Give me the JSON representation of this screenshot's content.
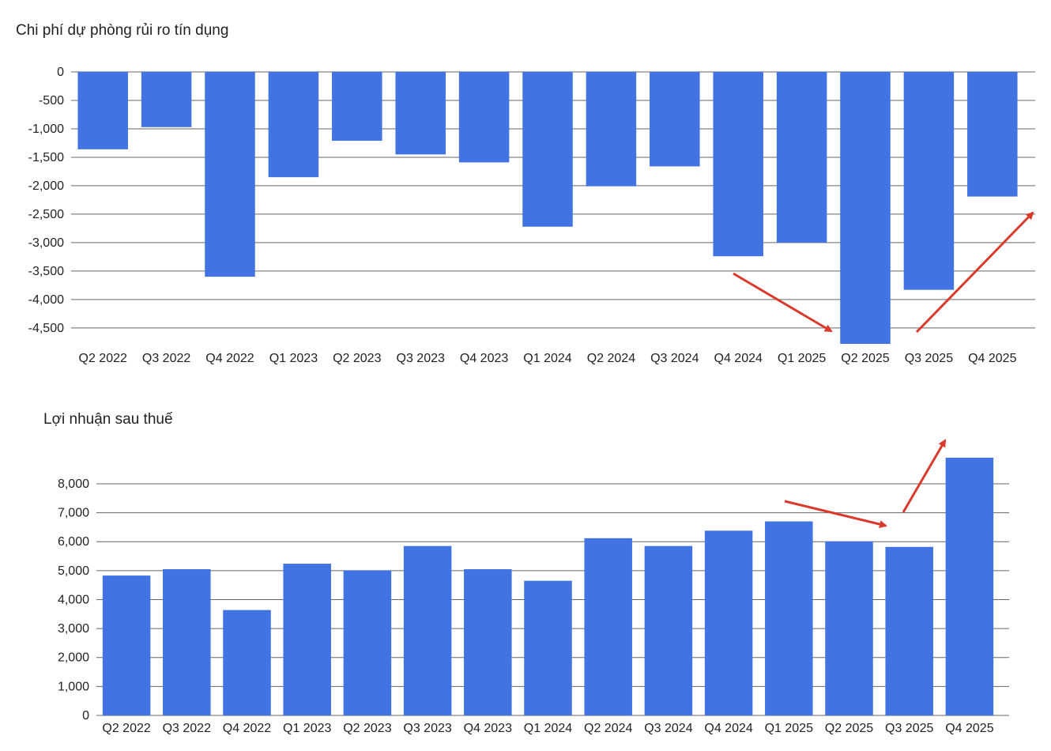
{
  "colors": {
    "bar": "#4174E2",
    "grid": "#666666",
    "arrow": "#D93A2B",
    "background": "#ffffff"
  },
  "chart_data": [
    {
      "type": "bar",
      "title": "Chi phí dự phòng rủi ro tín dụng",
      "xlabel": "",
      "ylabel": "",
      "categories": [
        "Q2 2022",
        "Q3 2022",
        "Q4 2022",
        "Q1 2023",
        "Q2 2023",
        "Q3 2023",
        "Q4 2023",
        "Q1 2024",
        "Q2 2024",
        "Q3 2024",
        "Q4 2024",
        "Q1 2025",
        "Q2 2025",
        "Q3 2025",
        "Q4 2025"
      ],
      "values": [
        -1360,
        -970,
        -3600,
        -1850,
        -1210,
        -1450,
        -1590,
        -2720,
        -2010,
        -1660,
        -3240,
        -3000,
        -4780,
        -3830,
        -2190
      ],
      "ylim": [
        -4780,
        0
      ],
      "yticks": [
        0,
        -500,
        -1000,
        -1500,
        -2000,
        -2500,
        -3000,
        -3500,
        -4000,
        -4500
      ],
      "ytick_labels": [
        "0",
        "-500",
        "-1,000",
        "-1,500",
        "-2,000",
        "-2,500",
        "-3,000",
        "-3,500",
        "-4,000",
        "-4,500"
      ],
      "grid": true,
      "legend": "none"
    },
    {
      "type": "bar",
      "title": "Lợi nhuận sau thuế",
      "xlabel": "",
      "ylabel": "",
      "categories": [
        "Q2 2022",
        "Q3 2022",
        "Q4 2022",
        "Q1 2023",
        "Q2 2023",
        "Q3 2023",
        "Q4 2023",
        "Q1 2024",
        "Q2 2024",
        "Q3 2024",
        "Q4 2024",
        "Q1 2025",
        "Q2 2025",
        "Q3 2025",
        "Q4 2025"
      ],
      "values": [
        4830,
        5050,
        3640,
        5240,
        5010,
        5850,
        5050,
        4650,
        6120,
        5850,
        6380,
        6700,
        6010,
        5820,
        8900
      ],
      "ylim": [
        0,
        8900
      ],
      "yticks": [
        0,
        1000,
        2000,
        3000,
        4000,
        5000,
        6000,
        7000,
        8000
      ],
      "ytick_labels": [
        "0",
        "1,000",
        "2,000",
        "3,000",
        "4,000",
        "5,000",
        "6,000",
        "7,000",
        "8,000"
      ],
      "grid": true,
      "legend": "none"
    }
  ]
}
